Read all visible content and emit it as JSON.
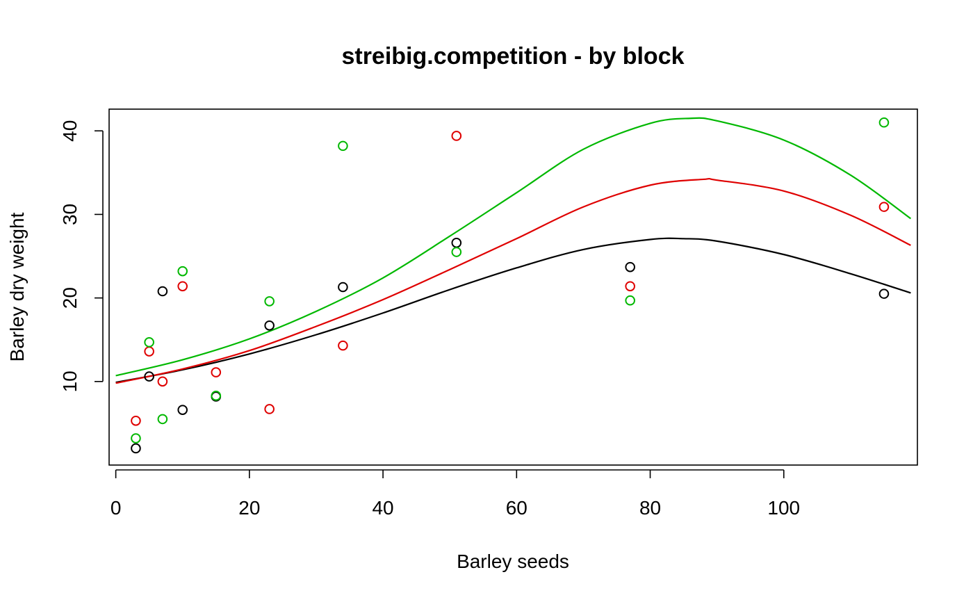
{
  "chart_data": {
    "type": "scatter",
    "title": "streibig.competition - by block",
    "xlabel": "Barley seeds",
    "ylabel": "Barley dry weight",
    "xlim": [
      -1,
      120
    ],
    "ylim": [
      0,
      42.6
    ],
    "x_ticks": [
      "0",
      "20",
      "40",
      "60",
      "80",
      "100"
    ],
    "y_ticks": [
      "10",
      "20",
      "30",
      "40"
    ],
    "grid": false,
    "legend": "none",
    "series": [
      {
        "color": "#000000",
        "points": [
          [
            3,
            2.0
          ],
          [
            5,
            10.6
          ],
          [
            7,
            20.8
          ],
          [
            10,
            6.6
          ],
          [
            15,
            8.2
          ],
          [
            23,
            16.7
          ],
          [
            34,
            21.3
          ],
          [
            51,
            26.6
          ],
          [
            77,
            23.7
          ],
          [
            115,
            20.5
          ]
        ],
        "curve": [
          [
            0,
            9.9
          ],
          [
            10,
            11.4
          ],
          [
            20,
            13.3
          ],
          [
            30,
            15.6
          ],
          [
            40,
            18.2
          ],
          [
            50,
            21.0
          ],
          [
            60,
            23.6
          ],
          [
            70,
            25.8
          ],
          [
            80,
            27.0
          ],
          [
            85,
            27.1
          ],
          [
            90,
            26.8
          ],
          [
            100,
            25.2
          ],
          [
            110,
            22.9
          ],
          [
            119,
            20.6
          ]
        ]
      },
      {
        "color": "#DF0000",
        "points": [
          [
            3,
            5.3
          ],
          [
            5,
            13.6
          ],
          [
            7,
            10.0
          ],
          [
            10,
            21.4
          ],
          [
            15,
            11.1
          ],
          [
            23,
            6.7
          ],
          [
            34,
            14.3
          ],
          [
            51,
            39.4
          ],
          [
            77,
            21.4
          ],
          [
            115,
            30.9
          ]
        ],
        "curve": [
          [
            0,
            9.8
          ],
          [
            10,
            11.5
          ],
          [
            20,
            13.7
          ],
          [
            30,
            16.6
          ],
          [
            40,
            19.8
          ],
          [
            50,
            23.4
          ],
          [
            60,
            27.1
          ],
          [
            70,
            30.9
          ],
          [
            80,
            33.5
          ],
          [
            88,
            34.2
          ],
          [
            90,
            34.1
          ],
          [
            100,
            32.8
          ],
          [
            110,
            29.9
          ],
          [
            119,
            26.3
          ]
        ]
      },
      {
        "color": "#00B800",
        "points": [
          [
            3,
            3.2
          ],
          [
            5,
            14.7
          ],
          [
            7,
            5.5
          ],
          [
            10,
            23.2
          ],
          [
            15,
            8.3
          ],
          [
            23,
            19.6
          ],
          [
            34,
            38.2
          ],
          [
            51,
            25.5
          ],
          [
            77,
            19.7
          ],
          [
            115,
            41.0
          ]
        ],
        "curve": [
          [
            0,
            10.7
          ],
          [
            10,
            12.6
          ],
          [
            20,
            15.1
          ],
          [
            30,
            18.4
          ],
          [
            40,
            22.4
          ],
          [
            50,
            27.4
          ],
          [
            60,
            32.6
          ],
          [
            70,
            37.8
          ],
          [
            80,
            40.9
          ],
          [
            86,
            41.5
          ],
          [
            90,
            41.2
          ],
          [
            100,
            38.9
          ],
          [
            110,
            34.7
          ],
          [
            119,
            29.5
          ]
        ]
      }
    ]
  }
}
